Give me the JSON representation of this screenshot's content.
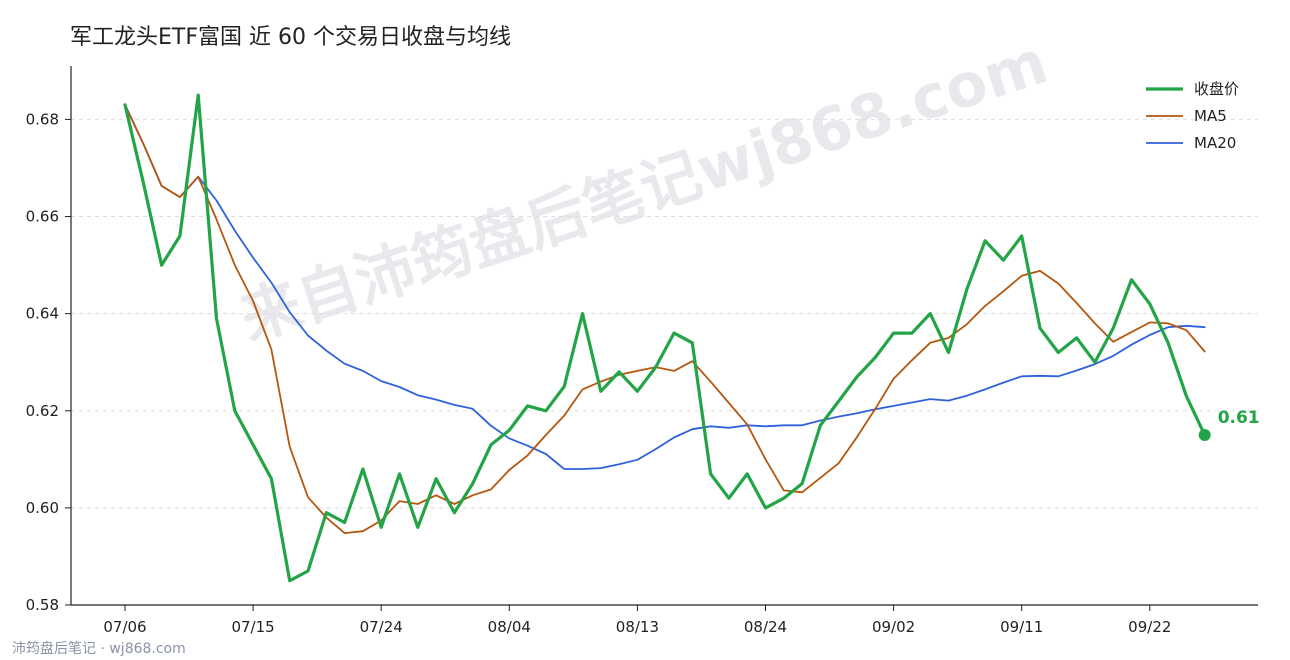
{
  "watermark": "来自沛筠盘后笔记wj868.com",
  "credit": "沛筠盘后笔记 · wj868.com",
  "chart_data": {
    "type": "line",
    "title": "军工龙头ETF富国 近 60 个交易日收盘与均线",
    "xlabel": "",
    "ylabel": "",
    "ylim": [
      0.58,
      0.691
    ],
    "yticks": [
      "0.58",
      "0.60",
      "0.62",
      "0.64",
      "0.66",
      "0.68"
    ],
    "xticks": [
      {
        "index": 0,
        "label": "07/06"
      },
      {
        "index": 7,
        "label": "07/15"
      },
      {
        "index": 14,
        "label": "07/24"
      },
      {
        "index": 21,
        "label": "08/04"
      },
      {
        "index": 28,
        "label": "08/13"
      },
      {
        "index": 35,
        "label": "08/24"
      },
      {
        "index": 42,
        "label": "09/02"
      },
      {
        "index": 49,
        "label": "09/11"
      },
      {
        "index": 56,
        "label": "09/22"
      }
    ],
    "grid": "horizontal dashed",
    "legend": "top-right",
    "last_label": "0.61",
    "series": [
      {
        "name": "收盘价",
        "color": "#22a447",
        "values": [
          0.683,
          0.667,
          0.65,
          0.656,
          0.685,
          0.639,
          0.62,
          0.613,
          0.606,
          0.585,
          0.587,
          0.599,
          0.597,
          0.608,
          0.596,
          0.607,
          0.596,
          0.606,
          0.599,
          0.605,
          0.613,
          0.616,
          0.621,
          0.62,
          0.625,
          0.64,
          0.624,
          0.628,
          0.624,
          0.629,
          0.636,
          0.634,
          0.607,
          0.602,
          0.607,
          0.6,
          0.602,
          0.605,
          0.617,
          0.622,
          0.627,
          0.631,
          0.636,
          0.636,
          0.64,
          0.632,
          0.645,
          0.655,
          0.651,
          0.656,
          0.637,
          0.632,
          0.635,
          0.63,
          0.637,
          0.647,
          0.642,
          0.634,
          0.623,
          0.615
        ]
      },
      {
        "name": "MA5",
        "color": "#b5570f",
        "values": [
          0.683,
          0.675,
          0.6663,
          0.664,
          0.6682,
          0.6594,
          0.65,
          0.6426,
          0.6326,
          0.6126,
          0.6022,
          0.598,
          0.5948,
          0.5952,
          0.5974,
          0.6014,
          0.6008,
          0.6026,
          0.6008,
          0.6026,
          0.6038,
          0.6078,
          0.6108,
          0.615,
          0.619,
          0.6244,
          0.626,
          0.6274,
          0.6282,
          0.629,
          0.6282,
          0.6302,
          0.626,
          0.6216,
          0.6172,
          0.61,
          0.6036,
          0.6032,
          0.6062,
          0.6092,
          0.6146,
          0.6204,
          0.6266,
          0.6304,
          0.634,
          0.635,
          0.6378,
          0.6416,
          0.6446,
          0.6478,
          0.6488,
          0.6462,
          0.6422,
          0.638,
          0.6342,
          0.6362,
          0.6382,
          0.638,
          0.6366,
          0.6322
        ]
      },
      {
        "name": "MA20",
        "color": "#2f62d9",
        "values": [
          0.683,
          0.675,
          0.6663,
          0.664,
          0.6682,
          0.6633,
          0.6571,
          0.6515,
          0.6464,
          0.6403,
          0.6355,
          0.6324,
          0.6297,
          0.6282,
          0.6261,
          0.6249,
          0.6232,
          0.6223,
          0.6212,
          0.6204,
          0.6169,
          0.6143,
          0.6128,
          0.6111,
          0.608,
          0.608,
          0.6082,
          0.609,
          0.6099,
          0.6121,
          0.6145,
          0.6162,
          0.6168,
          0.6165,
          0.617,
          0.6168,
          0.617,
          0.617,
          0.618,
          0.6188,
          0.6195,
          0.6203,
          0.621,
          0.6217,
          0.6224,
          0.6221,
          0.6231,
          0.6244,
          0.6258,
          0.6271,
          0.6272,
          0.6271,
          0.6283,
          0.6296,
          0.6313,
          0.6336,
          0.6356,
          0.6372,
          0.6375,
          0.6372
        ]
      }
    ]
  }
}
